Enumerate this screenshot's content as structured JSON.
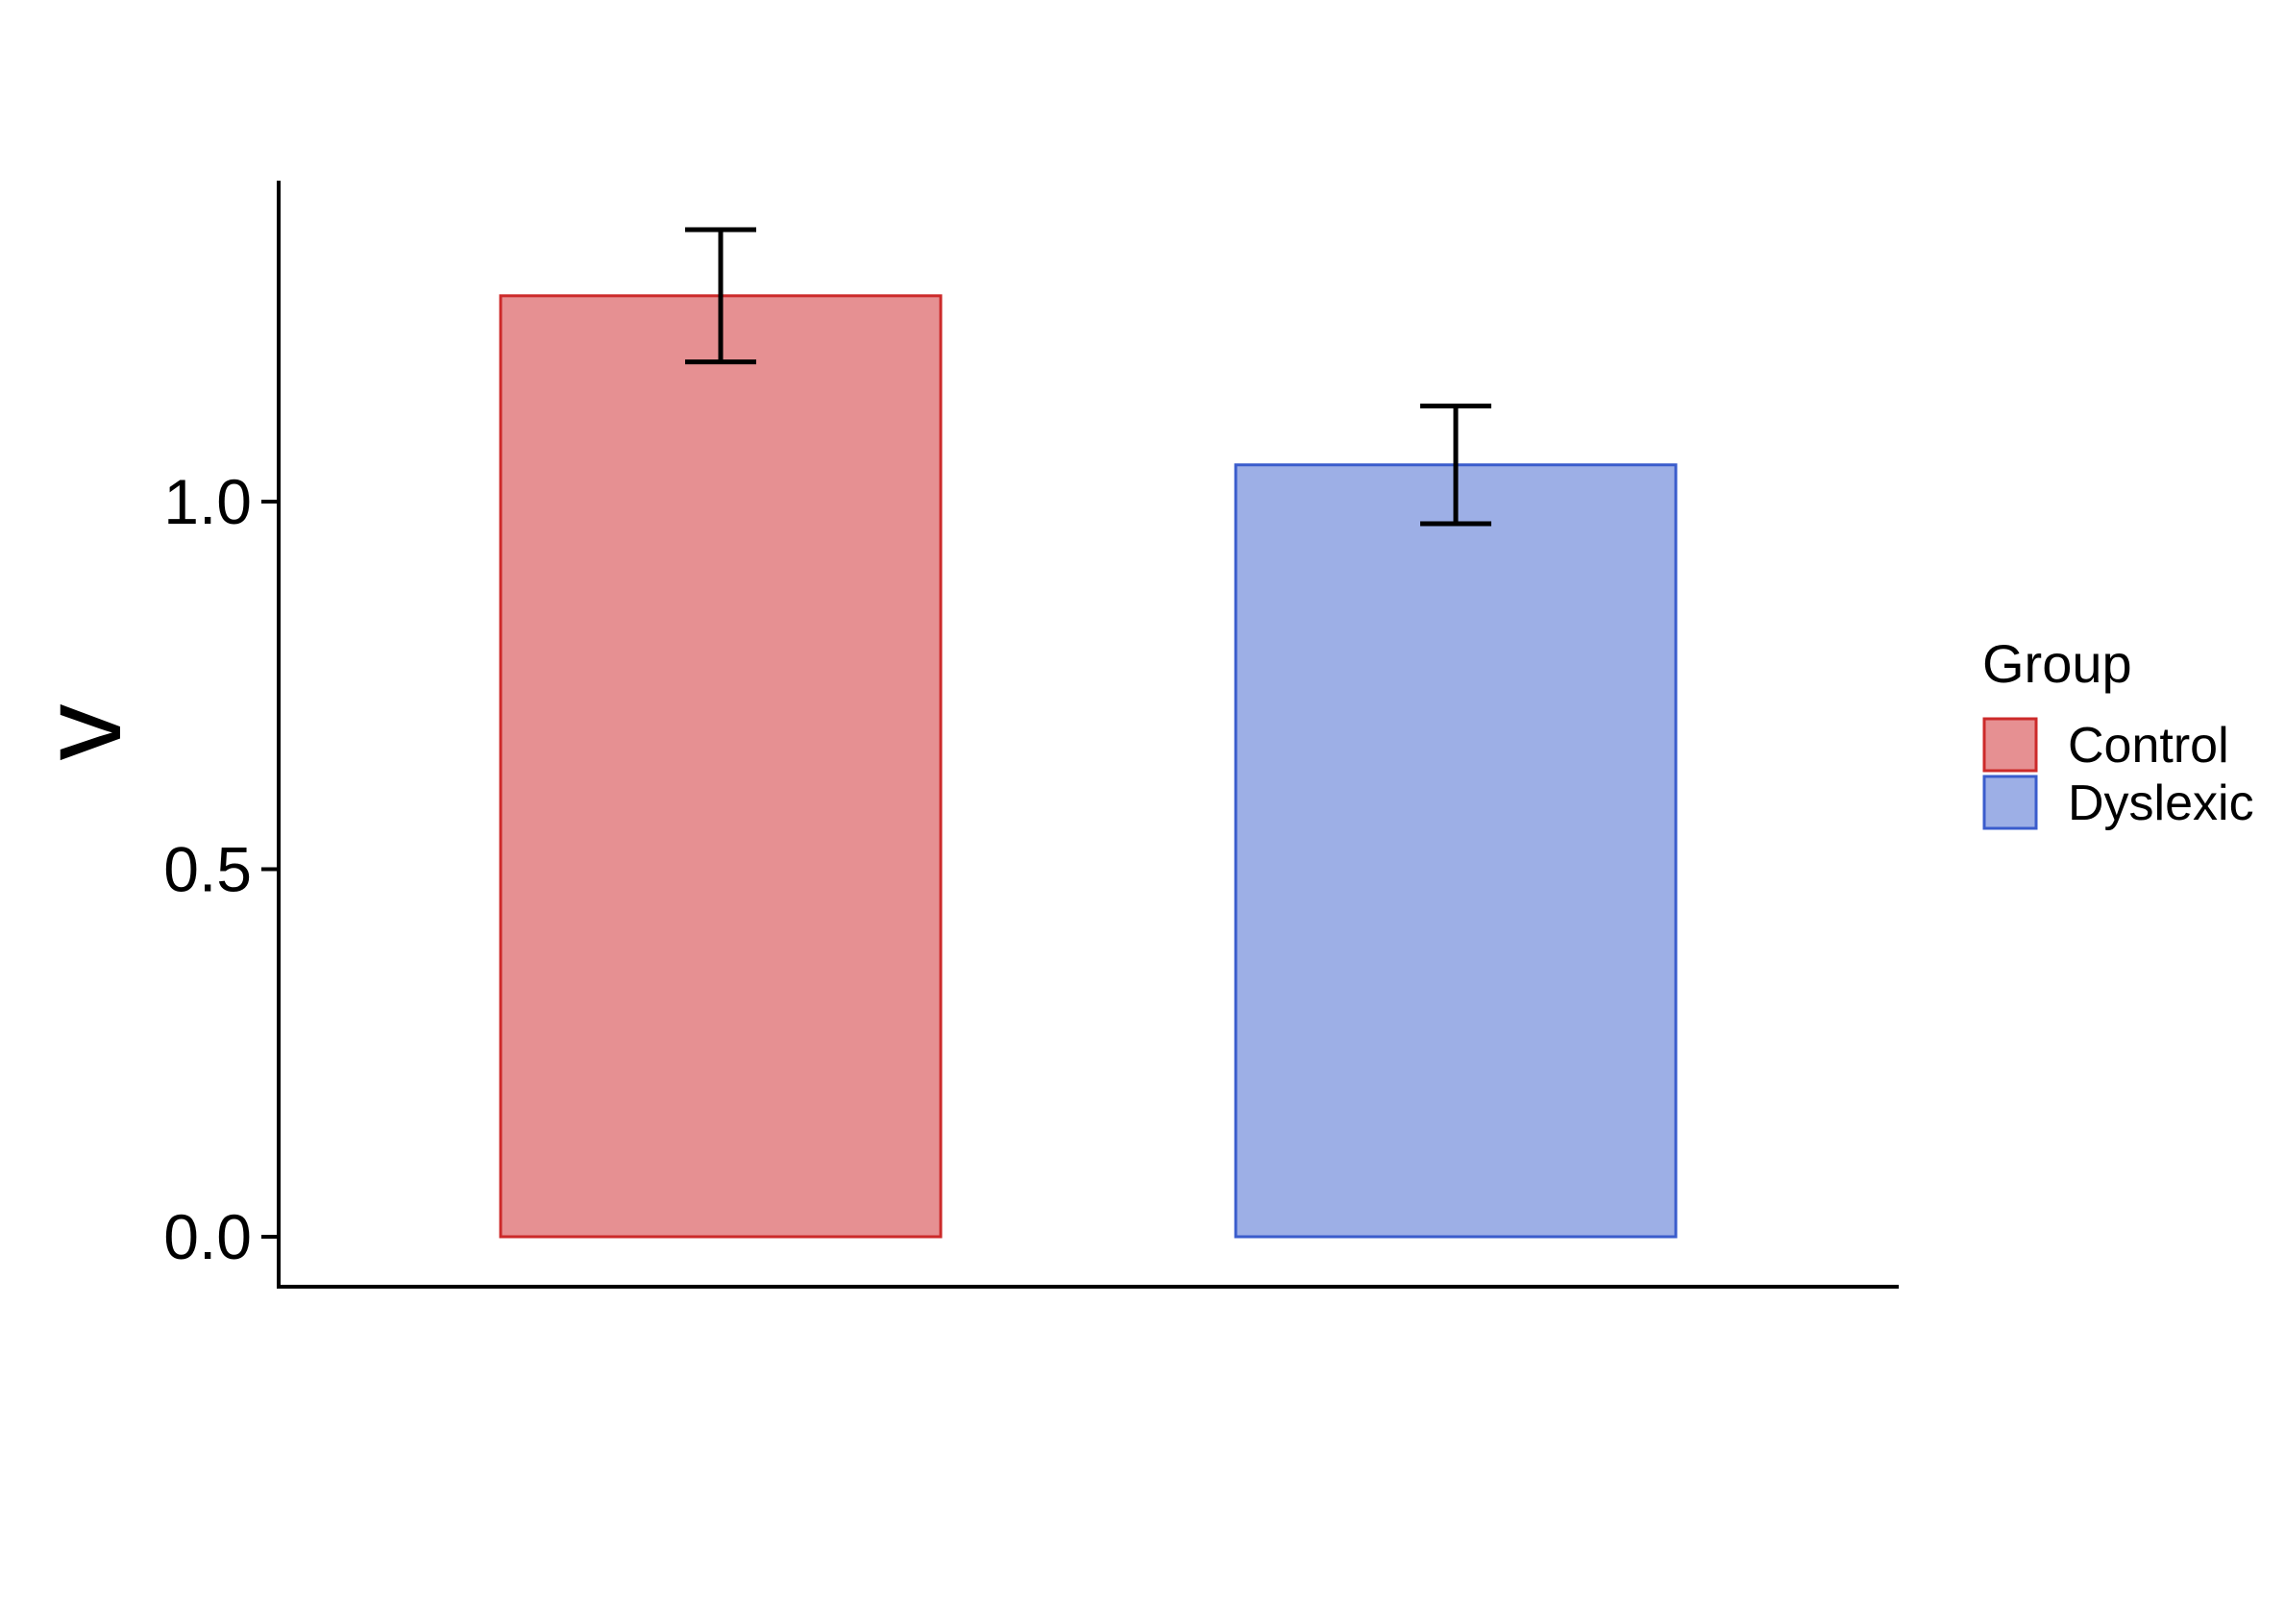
{
  "chart_data": {
    "type": "bar",
    "categories": [
      "Control",
      "Dyslexic"
    ],
    "values": [
      1.28,
      1.05
    ],
    "error_bars": [
      {
        "low": 1.19,
        "high": 1.37
      },
      {
        "low": 0.97,
        "high": 1.13
      }
    ],
    "title": "",
    "xlabel": "",
    "ylabel": "v",
    "ylim": [
      -0.07,
      1.44
    ],
    "yticks": [
      0.0,
      0.5,
      1.0
    ],
    "ytick_labels": [
      "0.0",
      "0.5",
      "1.0"
    ],
    "grid": false,
    "legend": {
      "title": "Group",
      "placement": "right",
      "entries": [
        {
          "label": "Control",
          "fill": "#e69092",
          "stroke": "#cc2a2a"
        },
        {
          "label": "Dyslexic",
          "fill": "#9dafe6",
          "stroke": "#3a5ccc"
        }
      ]
    },
    "colors": {
      "Control": {
        "fill": "#e69092",
        "stroke": "#cc2a2a"
      },
      "Dyslexic": {
        "fill": "#9dafe6",
        "stroke": "#3a5ccc"
      },
      "axis": "#000000",
      "error_bar": "#000000"
    }
  }
}
